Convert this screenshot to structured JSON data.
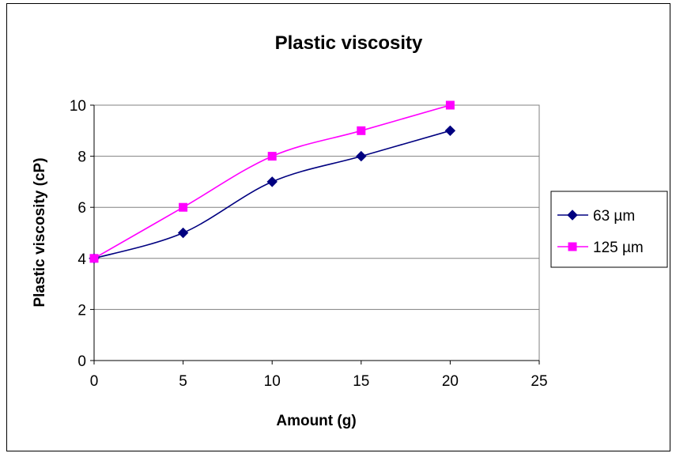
{
  "chart_data": {
    "type": "line",
    "title": "Plastic viscosity",
    "xlabel": "Amount (g)",
    "ylabel": "Plastic viscosity (cP)",
    "xlim": [
      0,
      25
    ],
    "ylim": [
      0,
      10
    ],
    "x_ticks": [
      "0",
      "5",
      "10",
      "15",
      "20",
      "25"
    ],
    "y_ticks": [
      "0",
      "2",
      "4",
      "6",
      "8",
      "10"
    ],
    "grid": "horizontal",
    "smoothed": true,
    "legend_position": "right",
    "x": [
      0,
      5,
      10,
      15,
      20
    ],
    "series": [
      {
        "name": "63 µm",
        "values": [
          4,
          5,
          7,
          8,
          9
        ],
        "color": "#000080",
        "marker": "diamond"
      },
      {
        "name": "125 µm",
        "values": [
          4,
          6,
          8,
          9,
          10
        ],
        "color": "#ff00ff",
        "marker": "square"
      }
    ]
  }
}
